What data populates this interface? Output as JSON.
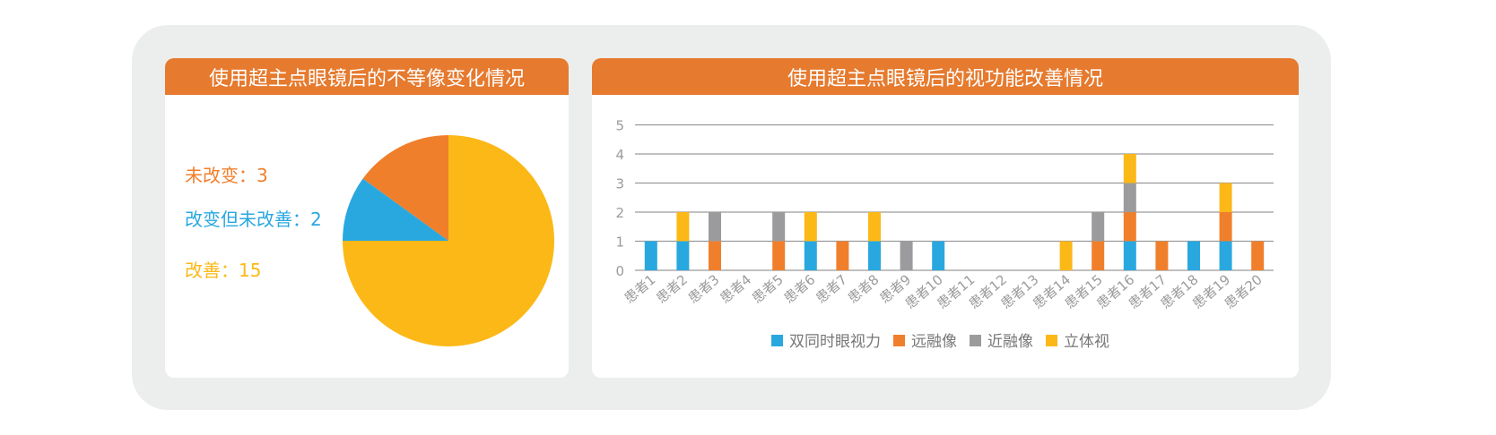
{
  "pie_card": {
    "title": "使用超主点眼镜后的不等像变化情况"
  },
  "bar_card": {
    "title": "使用超主点眼镜后的视功能改善情况"
  },
  "colors": {
    "header": "#e67a2e",
    "frame": "#eceeed",
    "blue": "#29a8e0",
    "orange": "#f07f2c",
    "gray": "#9b9b9e",
    "yellow": "#fcb817",
    "grid": "#9a9a9a",
    "tick": "#9b9b9b"
  },
  "chart_data": [
    {
      "type": "pie",
      "title": "使用超主点眼镜后的不等像变化情况",
      "slices": [
        {
          "label": "未改变：3",
          "value": 3,
          "color": "#f07f2c"
        },
        {
          "label": "改变但未改善：2",
          "value": 2,
          "color": "#29a8e0"
        },
        {
          "label": "改善：15",
          "value": 15,
          "color": "#fcb817"
        }
      ]
    },
    {
      "type": "bar",
      "stacked": true,
      "title": "使用超主点眼镜后的视功能改善情况",
      "categories": [
        "患者1",
        "患者2",
        "患者3",
        "患者4",
        "患者5",
        "患者6",
        "患者7",
        "患者8",
        "患者9",
        "患者10",
        "患者11",
        "患者12",
        "患者13",
        "患者14",
        "患者15",
        "患者16",
        "患者17",
        "患者18",
        "患者19",
        "患者20"
      ],
      "series": [
        {
          "name": "双同时眼视力",
          "color": "#29a8e0",
          "values": [
            1,
            1,
            0,
            0,
            0,
            1,
            0,
            1,
            0,
            1,
            0,
            0,
            0,
            0,
            0,
            1,
            0,
            1,
            1,
            0
          ]
        },
        {
          "name": "远融像",
          "color": "#f07f2c",
          "values": [
            0,
            0,
            1,
            0,
            1,
            0,
            1,
            0,
            0,
            0,
            0,
            0,
            0,
            0,
            1,
            1,
            1,
            0,
            1,
            1
          ]
        },
        {
          "name": "近融像",
          "color": "#9b9b9e",
          "values": [
            0,
            0,
            1,
            0,
            1,
            0,
            0,
            0,
            1,
            0,
            0,
            0,
            0,
            0,
            1,
            1,
            0,
            0,
            0,
            0
          ]
        },
        {
          "name": "立体视",
          "color": "#fcb817",
          "values": [
            0,
            1,
            0,
            0,
            0,
            1,
            0,
            1,
            0,
            0,
            0,
            0,
            0,
            1,
            0,
            1,
            0,
            0,
            1,
            0
          ]
        }
      ],
      "yticks": [
        "0",
        "1",
        "2",
        "3",
        "4",
        "5"
      ],
      "ylim": [
        0,
        5
      ],
      "grid": true,
      "legend": "bottom"
    }
  ]
}
